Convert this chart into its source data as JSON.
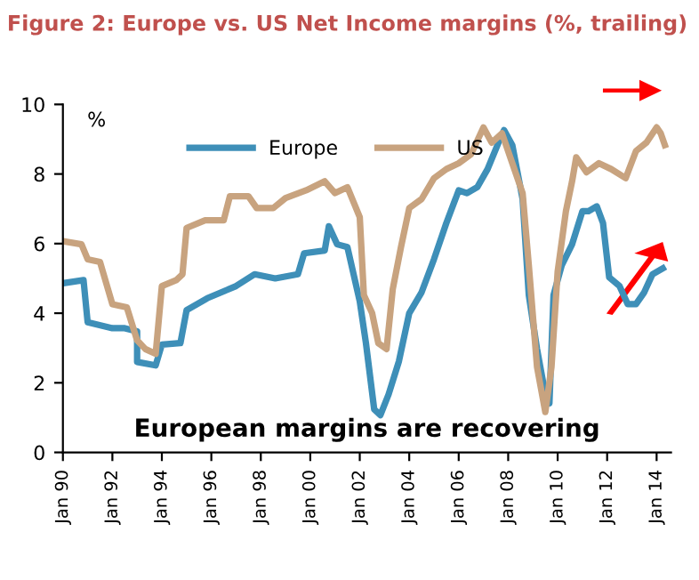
{
  "chart_data": {
    "type": "line",
    "title": "Figure 2: Europe vs. US Net Income margins (%, trailing)",
    "ylabel": "%",
    "annotations": [
      "European margins are recovering"
    ],
    "xlim": [
      "1990-01",
      "2014-08"
    ],
    "xticks": [
      {
        "value": "1990-01",
        "label": "Jan 90"
      },
      {
        "value": "1992-01",
        "label": "Jan 92"
      },
      {
        "value": "1994-01",
        "label": "Jan 94"
      },
      {
        "value": "1996-01",
        "label": "Jan 96"
      },
      {
        "value": "1998-01",
        "label": "Jan 98"
      },
      {
        "value": "2000-01",
        "label": "Jan 00"
      },
      {
        "value": "2002-01",
        "label": "Jan 02"
      },
      {
        "value": "2004-01",
        "label": "Jan 04"
      },
      {
        "value": "2006-01",
        "label": "Jan 06"
      },
      {
        "value": "2008-01",
        "label": "Jan 08"
      },
      {
        "value": "2010-01",
        "label": "Jan 10"
      },
      {
        "value": "2012-01",
        "label": "Jan 12"
      },
      {
        "value": "2014-01",
        "label": "Jan 14"
      }
    ],
    "ylim": [
      0,
      10
    ],
    "yticks": [
      0,
      2,
      4,
      6,
      8,
      10
    ],
    "grid": false,
    "legend": "top",
    "marker": "none",
    "line_style": "solid",
    "series": [
      {
        "name": "Europe",
        "color": "#3e8fb8",
        "x": [
          "1990-01",
          "1990-11",
          "1991-01",
          "1992-01",
          "1992-07",
          "1993-01",
          "1993-01",
          "1993-10",
          "1994-01",
          "1994-10",
          "1995-01",
          "1995-11",
          "1997-01",
          "1997-10",
          "1998-08",
          "1999-07",
          "1999-10",
          "2000-08",
          "2000-10",
          "2001-02",
          "2001-07",
          "2002-01",
          "2002-04",
          "2002-08",
          "2002-11",
          "2003-03",
          "2003-08",
          "2004-01",
          "2004-07",
          "2005-01",
          "2005-07",
          "2006-01",
          "2006-05",
          "2006-10",
          "2007-03",
          "2007-09",
          "2007-11",
          "2008-03",
          "2008-08",
          "2008-11",
          "2009-03",
          "2009-07",
          "2009-09",
          "2009-11",
          "2010-03",
          "2010-08",
          "2011-01",
          "2011-04",
          "2011-08",
          "2011-11",
          "2012-02",
          "2012-07",
          "2012-11",
          "2013-03",
          "2013-07",
          "2013-11",
          "2014-04"
        ],
        "values": [
          4.86,
          4.95,
          3.74,
          3.57,
          3.57,
          3.48,
          2.6,
          2.5,
          3.1,
          3.14,
          4.09,
          4.43,
          4.78,
          5.12,
          5.0,
          5.12,
          5.72,
          5.8,
          6.5,
          5.98,
          5.9,
          4.34,
          3.14,
          1.24,
          1.07,
          1.67,
          2.62,
          4.0,
          4.6,
          5.55,
          6.59,
          7.53,
          7.45,
          7.62,
          8.14,
          9.0,
          9.26,
          8.83,
          7.28,
          4.52,
          2.97,
          1.67,
          1.41,
          4.52,
          5.38,
          5.98,
          6.93,
          6.93,
          7.07,
          6.59,
          5.03,
          4.78,
          4.26,
          4.26,
          4.6,
          5.12,
          5.29
        ]
      },
      {
        "name": "US",
        "color": "#c8a37f",
        "x": [
          "1990-01",
          "1990-10",
          "1991-01",
          "1991-07",
          "1992-01",
          "1992-08",
          "1993-01",
          "1993-05",
          "1993-10",
          "1994-01",
          "1994-08",
          "1994-11",
          "1995-01",
          "1995-10",
          "1996-07",
          "1996-10",
          "1997-07",
          "1997-11",
          "1998-07",
          "1999-01",
          "1999-11",
          "2000-08",
          "2001-01",
          "2001-07",
          "2002-01",
          "2002-03",
          "2002-07",
          "2002-10",
          "2003-02",
          "2003-05",
          "2003-09",
          "2004-01",
          "2004-07",
          "2005-01",
          "2005-07",
          "2006-01",
          "2006-07",
          "2007-01",
          "2007-05",
          "2007-10",
          "2008-03",
          "2008-08",
          "2008-11",
          "2009-03",
          "2009-07",
          "2009-10",
          "2010-01",
          "2010-05",
          "2010-08",
          "2010-10",
          "2011-03",
          "2011-09",
          "2012-03",
          "2012-10",
          "2013-03",
          "2013-08",
          "2014-01",
          "2014-03",
          "2014-05"
        ],
        "values": [
          6.07,
          5.98,
          5.55,
          5.47,
          4.26,
          4.17,
          3.22,
          2.97,
          2.83,
          4.78,
          4.95,
          5.12,
          6.45,
          6.67,
          6.67,
          7.36,
          7.36,
          7.02,
          7.02,
          7.31,
          7.53,
          7.79,
          7.45,
          7.62,
          6.76,
          4.52,
          4.0,
          3.14,
          2.97,
          4.69,
          5.9,
          7.02,
          7.28,
          7.88,
          8.14,
          8.31,
          8.57,
          9.34,
          8.9,
          9.17,
          8.31,
          7.45,
          5.38,
          2.45,
          1.16,
          2.45,
          5.2,
          6.93,
          7.79,
          8.48,
          8.05,
          8.31,
          8.14,
          7.88,
          8.66,
          8.9,
          9.34,
          9.17,
          8.83
        ]
      }
    ]
  }
}
